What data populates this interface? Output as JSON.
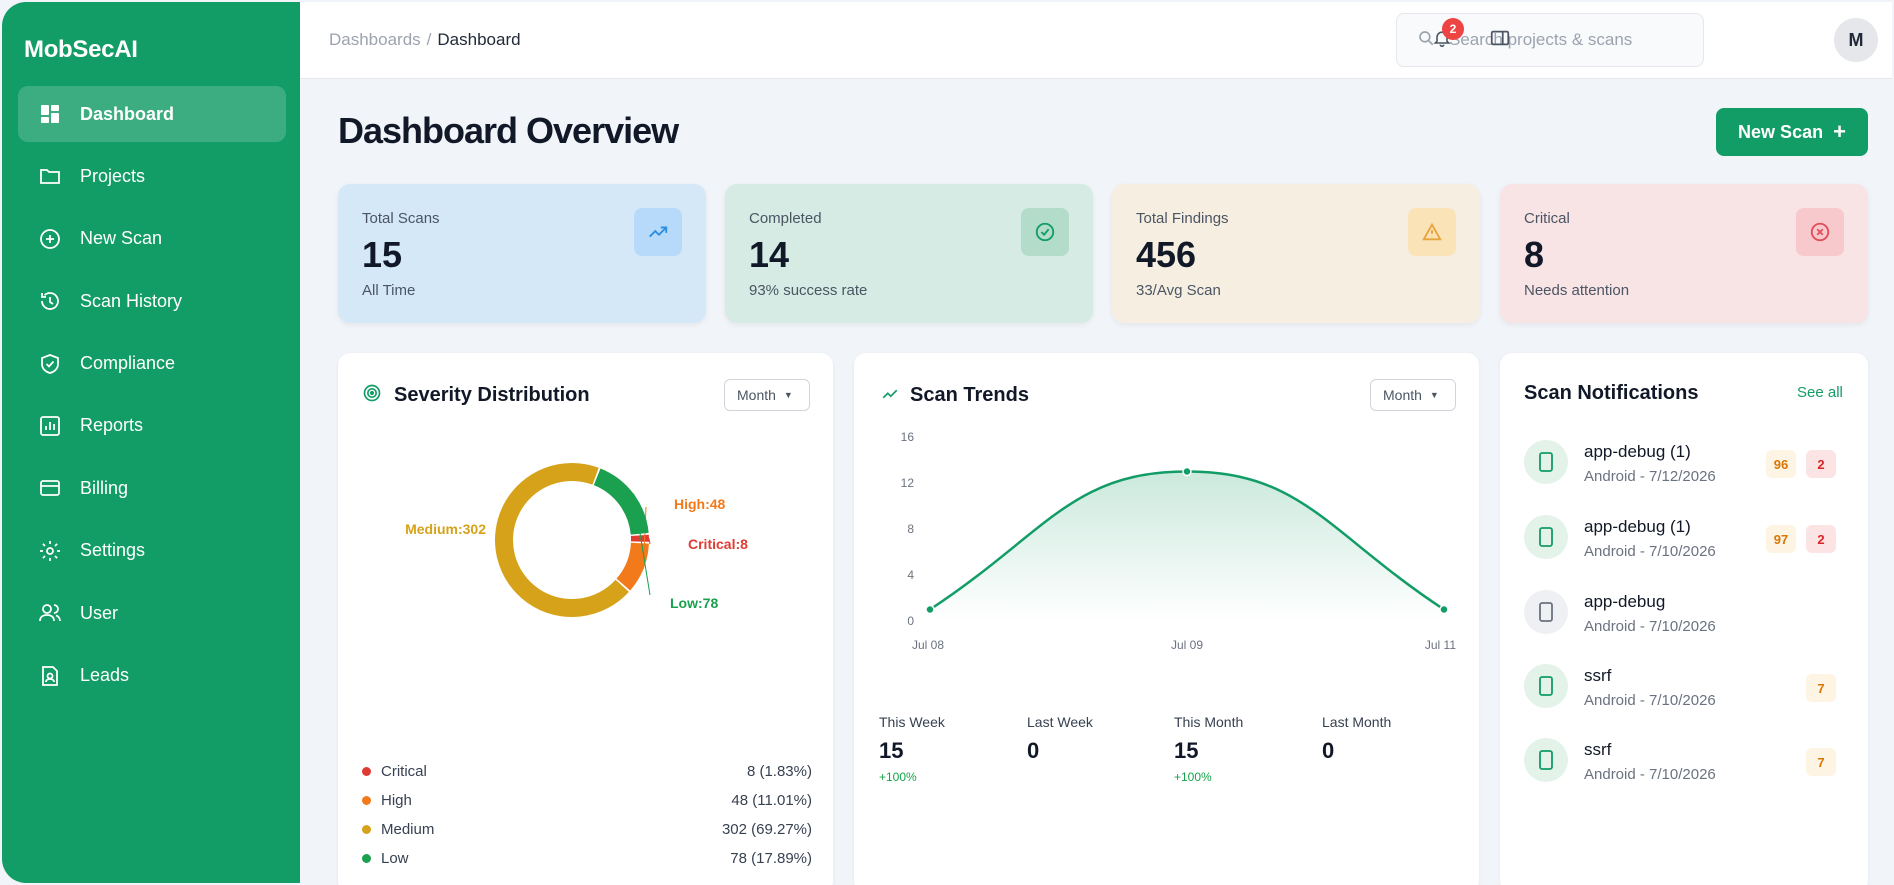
{
  "app": {
    "name": "MobSecAI"
  },
  "sidebar": {
    "items": [
      {
        "label": "Dashboard",
        "icon": "dashboard-icon"
      },
      {
        "label": "Projects",
        "icon": "folder-icon"
      },
      {
        "label": "New Scan",
        "icon": "plus-circle-icon"
      },
      {
        "label": "Scan History",
        "icon": "history-icon"
      },
      {
        "label": "Compliance",
        "icon": "shield-check-icon"
      },
      {
        "label": "Reports",
        "icon": "bar-chart-icon"
      },
      {
        "label": "Billing",
        "icon": "credit-card-icon"
      },
      {
        "label": "Settings",
        "icon": "gear-icon"
      },
      {
        "label": "User",
        "icon": "users-icon"
      },
      {
        "label": "Leads",
        "icon": "contact-icon"
      }
    ],
    "active": "Dashboard"
  },
  "header": {
    "breadcrumb": {
      "parent": "Dashboards",
      "separator": "/",
      "current": "Dashboard"
    },
    "search": {
      "placeholder": "Search projects & scans",
      "value": ""
    },
    "notification_count": "2",
    "avatar_initial": "M"
  },
  "page": {
    "title": "Dashboard Overview",
    "new_scan_label": "New Scan",
    "new_scan_icon": "+"
  },
  "stats": [
    {
      "label": "Total Scans",
      "value": "15",
      "sub": "All Time",
      "icon": "trend-up-icon",
      "bg": "#d4e8f8",
      "icon_bg": "#b7dafa",
      "icon_color": "#2b8de4"
    },
    {
      "label": "Completed",
      "value": "14",
      "sub": "93% success rate",
      "icon": "check-circle-icon",
      "bg": "#d5ebe3",
      "icon_bg": "#b3dccb",
      "icon_color": "#129c66"
    },
    {
      "label": "Total Findings",
      "value": "456",
      "sub": "33/Avg Scan",
      "icon": "warning-icon",
      "bg": "#f6efe1",
      "icon_bg": "#fbe3b8",
      "icon_color": "#e8a33b"
    },
    {
      "label": "Critical",
      "value": "8",
      "sub": "Needs attention",
      "icon": "x-circle-icon",
      "bg": "#f8e3e5",
      "icon_bg": "#f7c9cd",
      "icon_color": "#e24d5a"
    }
  ],
  "severity": {
    "title": "Severity Distribution",
    "filter": "Month",
    "chart_labels": {
      "critical": "Critical:8",
      "high": "High:48",
      "medium": "Medium:302",
      "low": "Low:78"
    },
    "legend": [
      {
        "name": "Critical",
        "value": "8 (1.83%)",
        "color": "#e03b33"
      },
      {
        "name": "High",
        "value": "48 (11.01%)",
        "color": "#f27a1a"
      },
      {
        "name": "Medium",
        "value": "302 (69.27%)",
        "color": "#d6a21a"
      },
      {
        "name": "Low",
        "value": "78 (17.89%)",
        "color": "#1aa04f"
      }
    ]
  },
  "chart_data": [
    {
      "type": "pie",
      "title": "Severity Distribution",
      "categories": [
        "Critical",
        "High",
        "Medium",
        "Low"
      ],
      "values": [
        8,
        48,
        302,
        78
      ],
      "colors": [
        "#e03b33",
        "#f27a1a",
        "#d6a21a",
        "#1aa04f"
      ],
      "donut": true
    },
    {
      "type": "area",
      "title": "Scan Trends",
      "x": [
        "Jul 08",
        "Jul 09",
        "Jul 11"
      ],
      "series": [
        {
          "values": [
            1,
            13,
            1
          ]
        }
      ],
      "ylim": [
        0,
        16
      ],
      "yticks": [
        "0",
        "4",
        "8",
        "12",
        "16"
      ],
      "color": "#129c66"
    }
  ],
  "trends": {
    "title": "Scan Trends",
    "filter": "Month",
    "stats": [
      {
        "label": "This Week",
        "value": "15",
        "change": "+100%"
      },
      {
        "label": "Last Week",
        "value": "0",
        "change": ""
      },
      {
        "label": "This Month",
        "value": "15",
        "change": "+100%"
      },
      {
        "label": "Last Month",
        "value": "0",
        "change": ""
      }
    ]
  },
  "notifications": {
    "title": "Scan Notifications",
    "see_all": "See all",
    "items": [
      {
        "name": "app-debug (1)",
        "meta": "Android - 7/12/2026",
        "badges": [
          {
            "text": "96",
            "kind": "orange"
          },
          {
            "text": "2",
            "kind": "red"
          }
        ],
        "status": "green"
      },
      {
        "name": "app-debug (1)",
        "meta": "Android - 7/10/2026",
        "badges": [
          {
            "text": "97",
            "kind": "orange"
          },
          {
            "text": "2",
            "kind": "red"
          }
        ],
        "status": "green"
      },
      {
        "name": "app-debug",
        "meta": "Android - 7/10/2026",
        "badges": [],
        "status": "gray"
      },
      {
        "name": "ssrf",
        "meta": "Android - 7/10/2026",
        "badges": [
          {
            "text": "7",
            "kind": "orange"
          }
        ],
        "status": "green"
      },
      {
        "name": "ssrf",
        "meta": "Android - 7/10/2026",
        "badges": [
          {
            "text": "7",
            "kind": "orange"
          }
        ],
        "status": "green"
      }
    ]
  }
}
